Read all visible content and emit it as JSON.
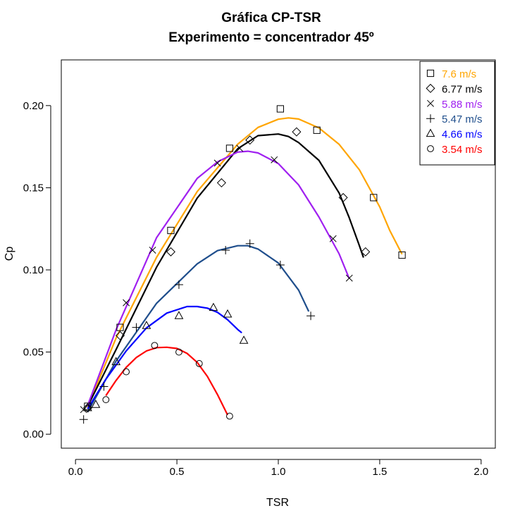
{
  "chart_data": {
    "type": "scatter",
    "title": "Gráfica CP-TSR",
    "subtitle": "Experimento = concentrador 45º",
    "xlabel": "TSR",
    "ylabel": "Cp",
    "xlim": [
      -0.07,
      2.07
    ],
    "ylim": [
      -0.0085,
      0.2278
    ],
    "x_ticks": [
      0.0,
      0.5,
      1.0,
      1.5,
      2.0
    ],
    "x_tick_labels": [
      "0.0",
      "0.5",
      "1.0",
      "1.5",
      "2.0"
    ],
    "y_ticks": [
      0.0,
      0.05,
      0.1,
      0.15,
      0.2
    ],
    "y_tick_labels": [
      "0.00",
      "0.05",
      "0.10",
      "0.15",
      "0.20"
    ],
    "grid": false,
    "legend_position": "top-right",
    "series": [
      {
        "name": "7.6 m/s",
        "marker": "square",
        "color": "#FFA500",
        "points": [
          [
            0.06,
            0.017
          ],
          [
            0.22,
            0.065
          ],
          [
            0.47,
            0.124
          ],
          [
            0.76,
            0.174
          ],
          [
            1.01,
            0.198
          ],
          [
            1.19,
            0.185
          ],
          [
            1.47,
            0.144
          ],
          [
            1.61,
            0.109
          ]
        ],
        "fit": [
          [
            0.06,
            0.0165
          ],
          [
            0.2,
            0.0585
          ],
          [
            0.4,
            0.1077
          ],
          [
            0.6,
            0.1477
          ],
          [
            0.8,
            0.1765
          ],
          [
            0.9,
            0.1867
          ],
          [
            1.0,
            0.1917
          ],
          [
            1.05,
            0.1925
          ],
          [
            1.1,
            0.1918
          ],
          [
            1.2,
            0.1864
          ],
          [
            1.3,
            0.1764
          ],
          [
            1.4,
            0.1609
          ],
          [
            1.5,
            0.1384
          ],
          [
            1.55,
            0.1239
          ],
          [
            1.61,
            0.1095
          ]
        ]
      },
      {
        "name": "6.77 m/s",
        "marker": "diamond",
        "color": "#000000",
        "points": [
          [
            0.06,
            0.016
          ],
          [
            0.22,
            0.06
          ],
          [
            0.47,
            0.111
          ],
          [
            0.72,
            0.153
          ],
          [
            0.86,
            0.179
          ],
          [
            1.09,
            0.184
          ],
          [
            1.32,
            0.144
          ],
          [
            1.43,
            0.111
          ]
        ],
        "fit": [
          [
            0.06,
            0.017
          ],
          [
            0.2,
            0.0515
          ],
          [
            0.4,
            0.1017
          ],
          [
            0.6,
            0.1437
          ],
          [
            0.8,
            0.1737
          ],
          [
            0.9,
            0.1817
          ],
          [
            1.0,
            0.1827
          ],
          [
            1.05,
            0.1812
          ],
          [
            1.1,
            0.1775
          ],
          [
            1.2,
            0.1667
          ],
          [
            1.3,
            0.1467
          ],
          [
            1.35,
            0.1317
          ],
          [
            1.4,
            0.1147
          ],
          [
            1.42,
            0.1075
          ]
        ]
      },
      {
        "name": "5.88 m/s",
        "marker": "cross",
        "color": "#A020F0",
        "points": [
          [
            0.04,
            0.015
          ],
          [
            0.25,
            0.08
          ],
          [
            0.38,
            0.112
          ],
          [
            0.7,
            0.165
          ],
          [
            0.81,
            0.174
          ],
          [
            0.98,
            0.167
          ],
          [
            1.27,
            0.119
          ],
          [
            1.35,
            0.095
          ]
        ],
        "fit": [
          [
            0.06,
            0.0175
          ],
          [
            0.2,
            0.0635
          ],
          [
            0.4,
            0.1197
          ],
          [
            0.6,
            0.1557
          ],
          [
            0.7,
            0.1657
          ],
          [
            0.8,
            0.1717
          ],
          [
            0.85,
            0.1722
          ],
          [
            0.9,
            0.1712
          ],
          [
            1.0,
            0.1647
          ],
          [
            1.1,
            0.1517
          ],
          [
            1.2,
            0.1322
          ],
          [
            1.3,
            0.1097
          ],
          [
            1.35,
            0.0947
          ]
        ]
      },
      {
        "name": "5.47 m/s",
        "marker": "plus",
        "color": "#1F4E8C",
        "points": [
          [
            0.04,
            0.009
          ],
          [
            0.14,
            0.029
          ],
          [
            0.3,
            0.065
          ],
          [
            0.51,
            0.091
          ],
          [
            0.74,
            0.112
          ],
          [
            0.86,
            0.116
          ],
          [
            1.01,
            0.103
          ],
          [
            1.16,
            0.072
          ]
        ],
        "fit": [
          [
            0.06,
            0.0135
          ],
          [
            0.2,
            0.0445
          ],
          [
            0.4,
            0.0797
          ],
          [
            0.6,
            0.1037
          ],
          [
            0.7,
            0.1117
          ],
          [
            0.8,
            0.1147
          ],
          [
            0.85,
            0.1147
          ],
          [
            0.9,
            0.1127
          ],
          [
            1.0,
            0.1042
          ],
          [
            1.1,
            0.0877
          ],
          [
            1.15,
            0.0747
          ]
        ]
      },
      {
        "name": "4.66 m/s",
        "marker": "triangle",
        "color": "#0000FF",
        "points": [
          [
            0.06,
            0.016
          ],
          [
            0.1,
            0.018
          ],
          [
            0.2,
            0.044
          ],
          [
            0.35,
            0.066
          ],
          [
            0.51,
            0.072
          ],
          [
            0.68,
            0.077
          ],
          [
            0.75,
            0.073
          ],
          [
            0.83,
            0.057
          ]
        ],
        "fit": [
          [
            0.06,
            0.0155
          ],
          [
            0.15,
            0.0335
          ],
          [
            0.25,
            0.0507
          ],
          [
            0.35,
            0.0647
          ],
          [
            0.45,
            0.0737
          ],
          [
            0.55,
            0.0777
          ],
          [
            0.6,
            0.0777
          ],
          [
            0.65,
            0.0767
          ],
          [
            0.7,
            0.0742
          ],
          [
            0.75,
            0.0697
          ],
          [
            0.8,
            0.0637
          ],
          [
            0.82,
            0.0617
          ]
        ]
      },
      {
        "name": "3.54 m/s",
        "marker": "circle",
        "color": "#FF0000",
        "points": [
          [
            0.15,
            0.021
          ],
          [
            0.25,
            0.038
          ],
          [
            0.39,
            0.054
          ],
          [
            0.51,
            0.05
          ],
          [
            0.61,
            0.043
          ],
          [
            0.76,
            0.011
          ]
        ],
        "fit": [
          [
            0.15,
            0.0235
          ],
          [
            0.2,
            0.0327
          ],
          [
            0.25,
            0.0407
          ],
          [
            0.3,
            0.0467
          ],
          [
            0.35,
            0.0507
          ],
          [
            0.4,
            0.0527
          ],
          [
            0.45,
            0.0529
          ],
          [
            0.5,
            0.0522
          ],
          [
            0.55,
            0.0492
          ],
          [
            0.6,
            0.0437
          ],
          [
            0.65,
            0.0352
          ],
          [
            0.7,
            0.0242
          ],
          [
            0.75,
            0.0117
          ]
        ]
      }
    ]
  }
}
